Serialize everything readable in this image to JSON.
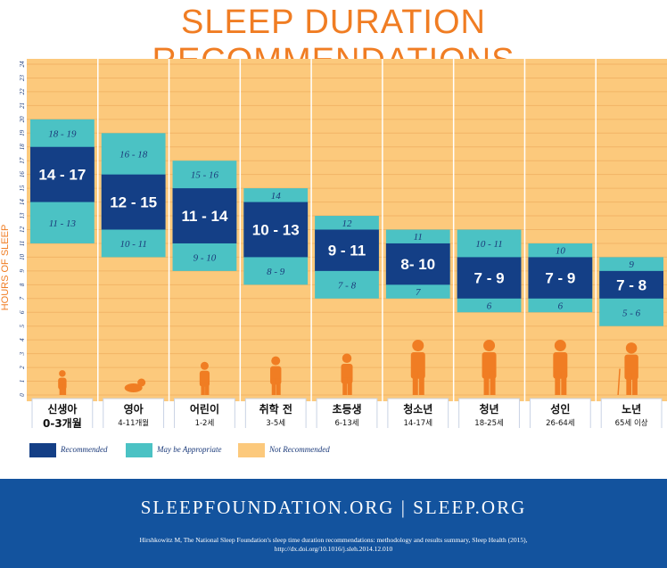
{
  "title": "SLEEP DURATION RECOMMENDATIONS",
  "colors": {
    "title": "#f07d23",
    "background": "#fcc97c",
    "grid": "#f2b466",
    "recommended": "#143f86",
    "may_be_appropriate": "#4bc2c4",
    "not_recommended": "#fcc97c",
    "footer": "#13539e",
    "figure": "#f07d23"
  },
  "legend": {
    "recommended": "Recommended",
    "may_be_appropriate": "May be Appropriate",
    "not_recommended": "Not Recommended"
  },
  "chart_data": {
    "type": "range-bar",
    "ylabel": "HOURS OF SLEEP",
    "ylim": [
      0,
      24
    ],
    "yticks": [
      "0",
      "1",
      "2",
      "3",
      "4",
      "5",
      "6",
      "7",
      "8",
      "9",
      "10",
      "11",
      "12",
      "13",
      "14",
      "15",
      "16",
      "17",
      "18",
      "19",
      "20",
      "21",
      "22",
      "23",
      "24"
    ],
    "groups": [
      {
        "name": "신생아",
        "age": "0-3개월",
        "appropriate": [
          11,
          19
        ],
        "recommended": [
          14,
          17
        ],
        "labels": {
          "rec": "14 - 17",
          "upper": "18 - 19",
          "lower": "11 - 13"
        }
      },
      {
        "name": "영아",
        "age": "4-11개월",
        "appropriate": [
          10,
          18
        ],
        "recommended": [
          12,
          15
        ],
        "labels": {
          "rec": "12 - 15",
          "upper": "16 - 18",
          "lower": "10 - 11"
        }
      },
      {
        "name": "어린이",
        "age": "1-2세",
        "appropriate": [
          9,
          16
        ],
        "recommended": [
          11,
          14
        ],
        "labels": {
          "rec": "11 - 14",
          "upper": "15 - 16",
          "lower": "9 - 10"
        }
      },
      {
        "name": "취학 전",
        "age": "3-5세",
        "appropriate": [
          8,
          14
        ],
        "recommended": [
          10,
          13
        ],
        "labels": {
          "rec": "10 - 13",
          "upper": "14",
          "lower": "8 - 9"
        }
      },
      {
        "name": "초등생",
        "age": "6-13세",
        "appropriate": [
          7,
          12
        ],
        "recommended": [
          9,
          11
        ],
        "labels": {
          "rec": "9 - 11",
          "upper": "12",
          "lower": "7 - 8"
        }
      },
      {
        "name": "청소년",
        "age": "14-17세",
        "appropriate": [
          7,
          11
        ],
        "recommended": [
          8,
          10
        ],
        "labels": {
          "rec": "8- 10",
          "upper": "11",
          "lower": "7"
        }
      },
      {
        "name": "청년",
        "age": "18-25세",
        "appropriate": [
          6,
          11
        ],
        "recommended": [
          7,
          9
        ],
        "labels": {
          "rec": "7 - 9",
          "upper": "10 - 11",
          "lower": "6"
        }
      },
      {
        "name": "성인",
        "age": "26-64세",
        "appropriate": [
          6,
          10
        ],
        "recommended": [
          7,
          9
        ],
        "labels": {
          "rec": "7 - 9",
          "upper": "10",
          "lower": "6"
        }
      },
      {
        "name": "노년",
        "age": "65세 이상",
        "appropriate": [
          5,
          9
        ],
        "recommended": [
          7,
          8
        ],
        "labels": {
          "rec": "7 - 8",
          "upper": "9",
          "lower": "5 - 6"
        }
      }
    ]
  },
  "footer": {
    "site": "SLEEPFOUNDATION.ORG | SLEEP.ORG",
    "citation_line1": "Hirshkowitz M, The National Sleep Foundation's sleep time duration recommendations: methodology and results summary, Sleep Health (2015),",
    "citation_line2": "http://dx.doi.org/10.1016/j.sleh.2014.12.010"
  }
}
